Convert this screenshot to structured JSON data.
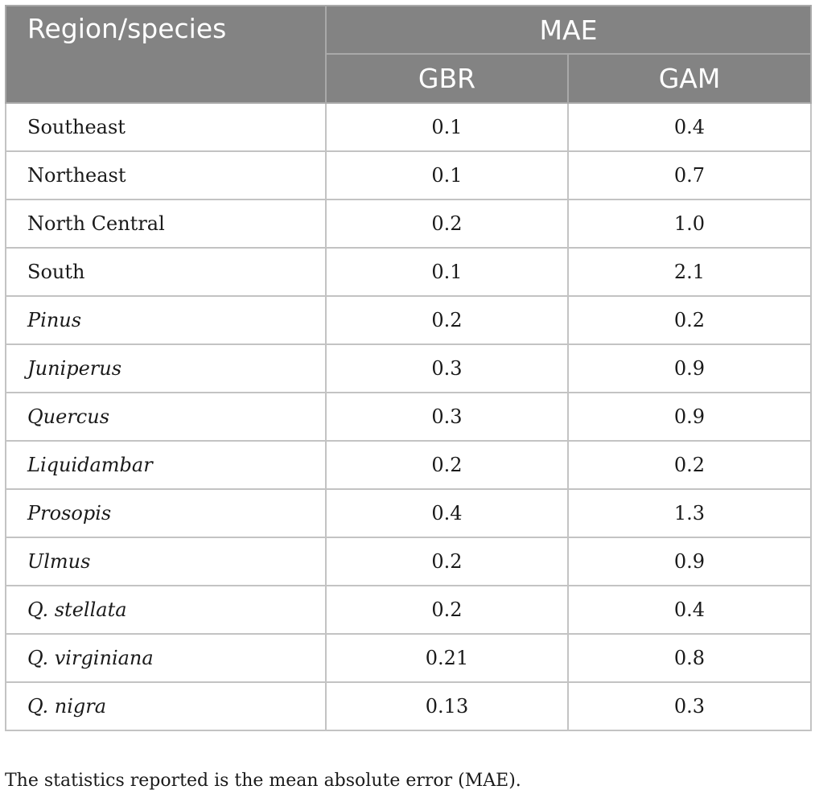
{
  "header": {
    "region_label": "Region/species",
    "group_label": "MAE",
    "columns": [
      "GBR",
      "GAM"
    ]
  },
  "rows": [
    {
      "label": "Southeast",
      "italic": false,
      "gbr": "0.1",
      "gam": "0.4"
    },
    {
      "label": "Northeast",
      "italic": false,
      "gbr": "0.1",
      "gam": "0.7"
    },
    {
      "label": "North Central",
      "italic": false,
      "gbr": "0.2",
      "gam": "1.0"
    },
    {
      "label": "South",
      "italic": false,
      "gbr": "0.1",
      "gam": "2.1"
    },
    {
      "label": "Pinus",
      "italic": true,
      "gbr": "0.2",
      "gam": "0.2"
    },
    {
      "label": "Juniperus",
      "italic": true,
      "gbr": "0.3",
      "gam": "0.9"
    },
    {
      "label": "Quercus",
      "italic": true,
      "gbr": "0.3",
      "gam": "0.9"
    },
    {
      "label": "Liquidambar",
      "italic": true,
      "gbr": "0.2",
      "gam": "0.2"
    },
    {
      "label": "Prosopis",
      "italic": true,
      "gbr": "0.4",
      "gam": "1.3"
    },
    {
      "label": "Ulmus",
      "italic": true,
      "gbr": "0.2",
      "gam": "0.9"
    },
    {
      "label": "Q. stellata",
      "italic": true,
      "gbr": "0.2",
      "gam": "0.4"
    },
    {
      "label": "Q. virginiana",
      "italic": true,
      "gbr": "0.21",
      "gam": "0.8"
    },
    {
      "label": "Q. nigra",
      "italic": true,
      "gbr": "0.13",
      "gam": "0.3"
    }
  ],
  "footnote": "The statistics reported is the mean absolute error (MAE)."
}
